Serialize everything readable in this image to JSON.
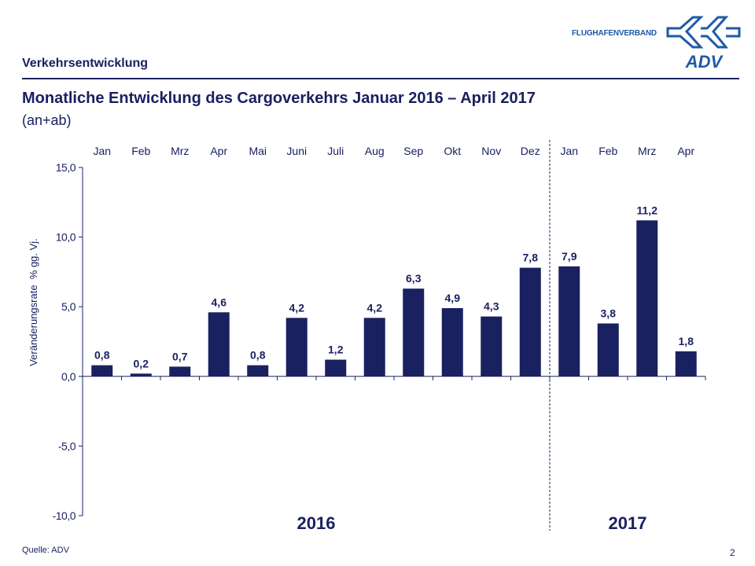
{
  "header": {
    "section": "Verkehrsentwicklung",
    "title": "Monatliche Entwicklung des Cargoverkehrs Januar 2016 – April 2017",
    "subtitle": "(an+ab)",
    "logo_text": "FLUGHAFENVERBAND",
    "logo_mark": "ADV"
  },
  "footer": {
    "source": "Quelle: ADV",
    "page": "2"
  },
  "colors": {
    "bar": "#1a2160",
    "text": "#1a2160",
    "logo": "#1f5aa6"
  },
  "chart_data": {
    "type": "bar",
    "categories": [
      "Jan",
      "Feb",
      "Mrz",
      "Apr",
      "Mai",
      "Juni",
      "Juli",
      "Aug",
      "Sep",
      "Okt",
      "Nov",
      "Dez",
      "Jan",
      "Feb",
      "Mrz",
      "Apr"
    ],
    "values": [
      0.8,
      0.2,
      0.7,
      4.6,
      0.8,
      4.2,
      1.2,
      4.2,
      6.3,
      4.9,
      4.3,
      7.8,
      7.9,
      3.8,
      11.2,
      1.8
    ],
    "value_labels": [
      "0,8",
      "0,2",
      "0,7",
      "4,6",
      "0,8",
      "4,2",
      "1,2",
      "4,2",
      "6,3",
      "4,9",
      "4,3",
      "7,8",
      "7,9",
      "3,8",
      "11,2",
      "1,8"
    ],
    "ylabel": "Veränderungsrate  % gg. Vj.",
    "ylim": [
      -10,
      15
    ],
    "yticks": [
      -10,
      -5,
      0,
      5,
      10,
      15
    ],
    "ytick_labels": [
      "-10,0",
      "-5,0",
      "0,0",
      "5,0",
      "10,0",
      "15,0"
    ],
    "groups": [
      {
        "label": "2016",
        "from": 0,
        "to": 11
      },
      {
        "label": "2017",
        "from": 12,
        "to": 15
      }
    ],
    "category_labels_position": "top",
    "divider": "dashed line between Dez and Jan",
    "grid": false,
    "legend": "none"
  }
}
